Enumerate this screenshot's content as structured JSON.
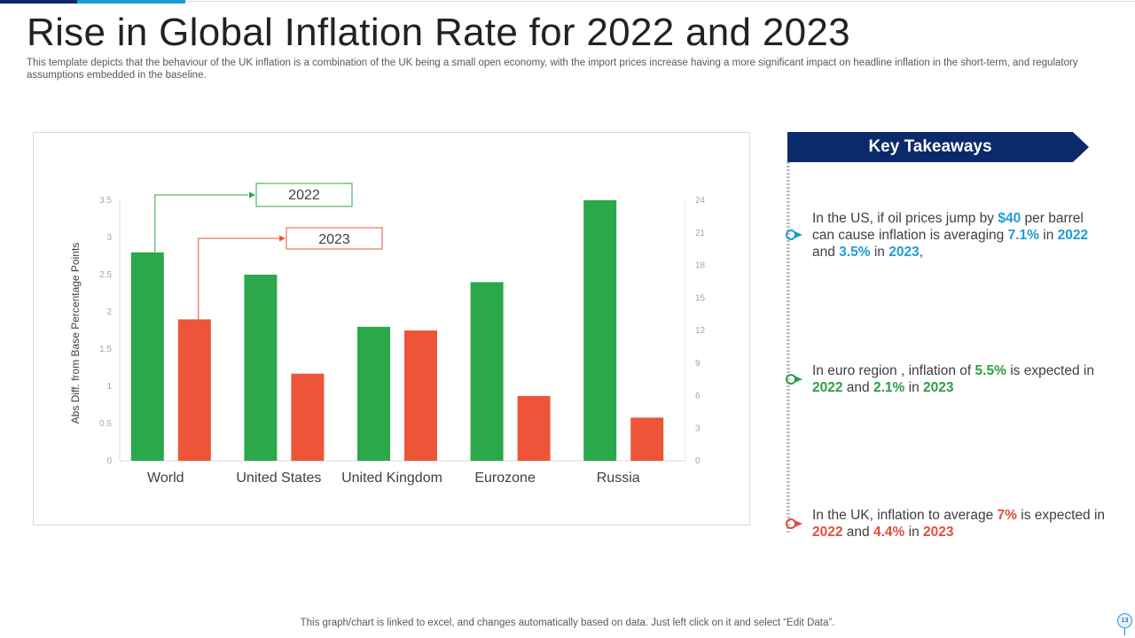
{
  "title": "Rise in Global Inflation Rate for 2022 and 2023",
  "subtitle": "This template depicts that the behaviour of the UK inflation is a combination of the UK being a small open economy, with the import prices increase having a more significant impact on headline inflation in the short-term, and regulatory assumptions embedded in the baseline.",
  "chart_data": {
    "type": "bar",
    "categories": [
      "World",
      "United States",
      "United Kingdom",
      "Eurozone",
      "Russia"
    ],
    "series": [
      {
        "name": "2022",
        "color": "#2ba84a",
        "axis": "left",
        "values": [
          2.8,
          2.5,
          1.8,
          2.4,
          3.5
        ]
      },
      {
        "name": "2023",
        "color": "#ec5538",
        "axis": "left",
        "values": [
          1.9,
          1.17,
          1.75,
          0.87,
          0.58
        ]
      }
    ],
    "ylabel": "Abs Diff.  from Base Percentage Points",
    "ylim": [
      0,
      3.5
    ],
    "yticks": [
      "0",
      "0.5",
      "1",
      "1.5",
      "2",
      "2.5",
      "3",
      "3.5"
    ],
    "y2lim": [
      0,
      24
    ],
    "y2ticks": [
      "0",
      "3",
      "6",
      "9",
      "12",
      "15",
      "18",
      "21",
      "24"
    ],
    "grid": false,
    "legend_callouts": [
      "2022",
      "2023"
    ]
  },
  "takeaways": {
    "header": "Key Takeaways",
    "items": [
      {
        "color": "#1f9bd7",
        "parts": [
          {
            "t": "In the US, if oil prices jump by ",
            "b": false
          },
          {
            "t": "$40",
            "b": true
          },
          {
            "t": " per barrel can cause inflation is averaging ",
            "b": false
          },
          {
            "t": "7.1%",
            "b": true
          },
          {
            "t": " in ",
            "b": false
          },
          {
            "t": "2022",
            "b": true
          },
          {
            "t": " and ",
            "b": false
          },
          {
            "t": "3.5%",
            "b": true
          },
          {
            "t": " in ",
            "b": false
          },
          {
            "t": "2023",
            "b": true
          },
          {
            "t": ",",
            "b": false
          }
        ]
      },
      {
        "color": "#2e9e44",
        "parts": [
          {
            "t": "In euro region , inflation of ",
            "b": false
          },
          {
            "t": "5.5%",
            "b": true
          },
          {
            "t": " is expected in ",
            "b": false
          },
          {
            "t": "2022",
            "b": true
          },
          {
            "t": " and ",
            "b": false
          },
          {
            "t": "2.1%",
            "b": true
          },
          {
            "t": " in ",
            "b": false
          },
          {
            "t": "2023",
            "b": true
          }
        ]
      },
      {
        "color": "#e0503a",
        "parts": [
          {
            "t": "In the UK, inflation to average ",
            "b": false
          },
          {
            "t": "7%",
            "b": true
          },
          {
            "t": " is expected in ",
            "b": false
          },
          {
            "t": "2022",
            "b": true
          },
          {
            "t": " and ",
            "b": false
          },
          {
            "t": "4.4%",
            "b": true
          },
          {
            "t": " in ",
            "b": false
          },
          {
            "t": "2023",
            "b": true
          }
        ]
      }
    ]
  },
  "footer": "This graph/chart is linked to excel,  and changes automatically based on data. Just left click on it and select “Edit Data”.",
  "page_number": "13"
}
